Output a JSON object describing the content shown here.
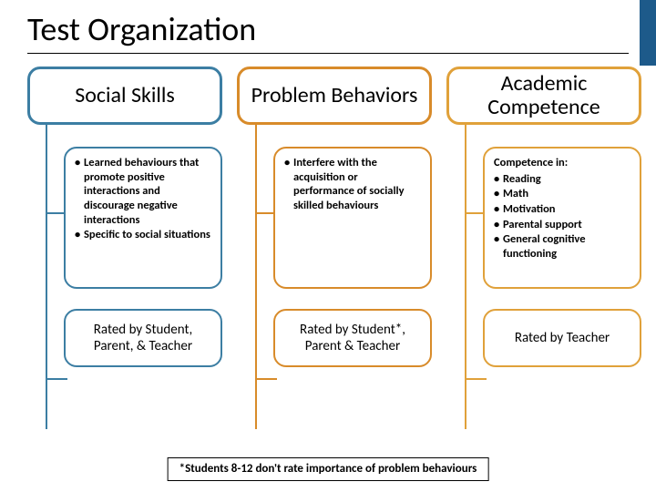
{
  "title": "Test Organization",
  "sidebar_tab_color": "#1d5a8a",
  "columns": [
    {
      "accent": "#3c7ea3",
      "header": "Social Skills",
      "body_subhead": "",
      "body_items": [
        "Learned behaviours that promote positive interactions and discourage negative interactions",
        "Specific to social situations"
      ],
      "rated": "Rated by Student, Parent, & Teacher"
    },
    {
      "accent": "#d88b2a",
      "header": "Problem Behaviors",
      "body_subhead": "",
      "body_items": [
        "Interfere with the acquisition or performance of socially skilled behaviours"
      ],
      "rated": "Rated by Student*, Parent & Teacher"
    },
    {
      "accent": "#e0a13a",
      "header": "Academic Competence",
      "body_subhead": "Competence in:",
      "body_items": [
        "Reading",
        "Math",
        "Motivation",
        "Parental support",
        "General cognitive functioning"
      ],
      "rated": "Rated by Teacher"
    }
  ],
  "footnote": "*Students 8-12 don't rate importance of problem behaviours",
  "border_width_header": 3,
  "border_width_box": 2,
  "connector_width": 2,
  "hstub_top1": 160,
  "hstub_top2": 342
}
